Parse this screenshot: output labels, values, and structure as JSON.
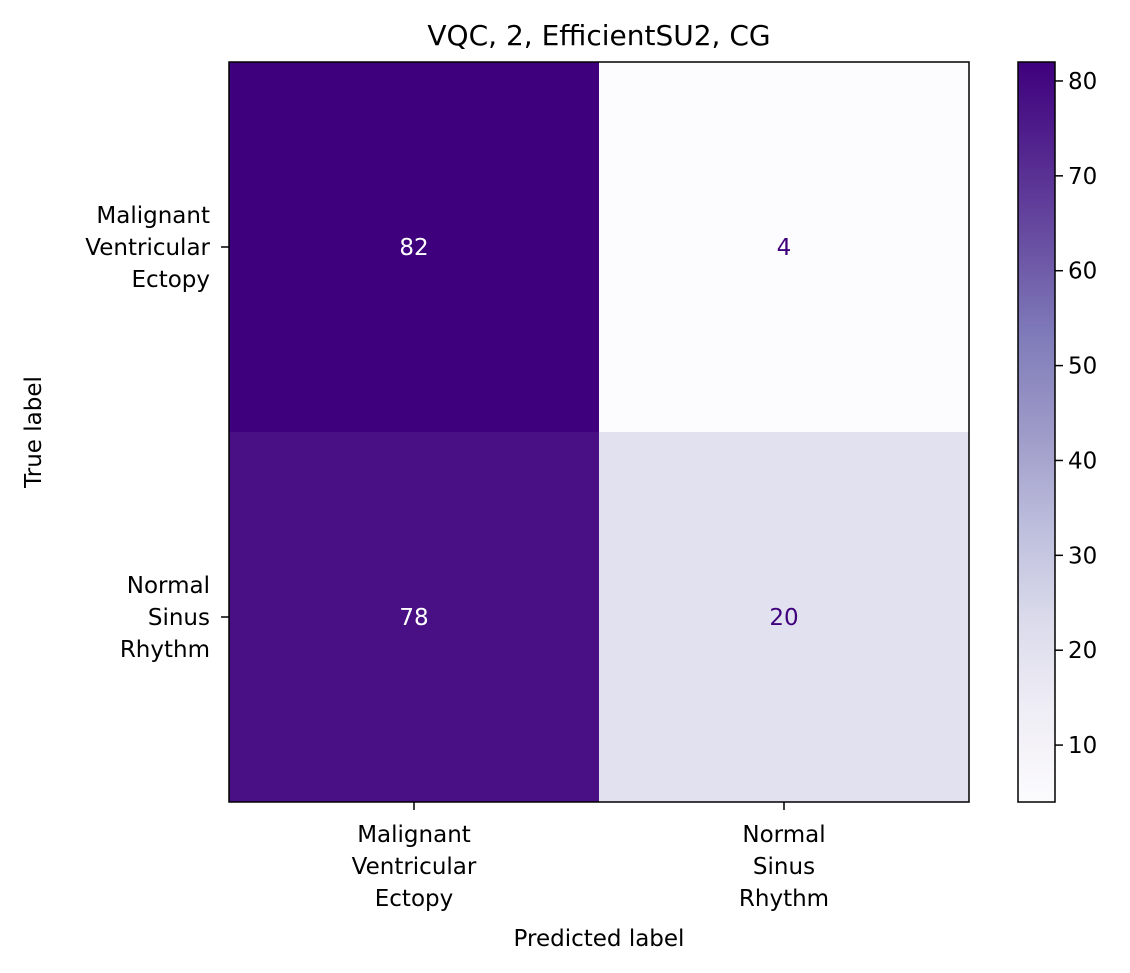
{
  "chart_data": {
    "type": "heatmap",
    "title": "VQC, 2, EfficientSU2, CG",
    "xlabel": "Predicted label",
    "ylabel": "True label",
    "x_categories": [
      [
        "Malignant",
        "Ventricular",
        "Ectopy"
      ],
      [
        "Normal",
        "Sinus",
        "Rhythm"
      ]
    ],
    "y_categories": [
      [
        "Malignant",
        "Ventricular",
        "Ectopy"
      ],
      [
        "Normal",
        "Sinus",
        "Rhythm"
      ]
    ],
    "matrix": [
      [
        82,
        4
      ],
      [
        78,
        20
      ]
    ],
    "colormap": "Purples",
    "color_low": "#fcfbfd",
    "color_high": "#3f007d",
    "light_text_color": "#ffffff",
    "dark_text_color": "#3f007d",
    "colorbar": {
      "min": 4,
      "max": 82,
      "ticks": [
        10,
        20,
        30,
        40,
        50,
        60,
        70,
        80
      ]
    },
    "grid": false,
    "legend": "none"
  }
}
